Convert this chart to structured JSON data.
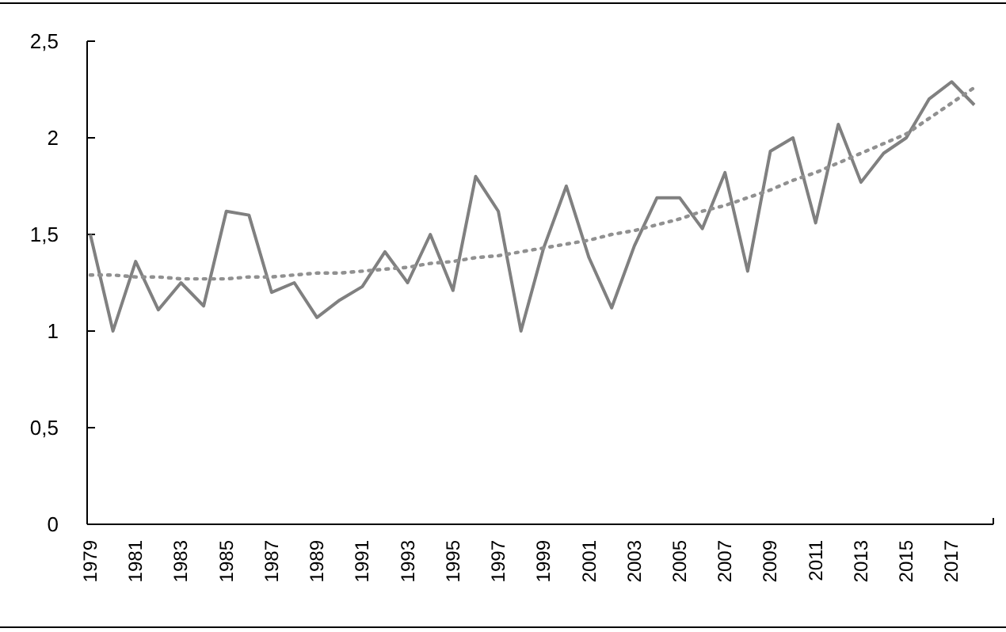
{
  "chart_data": {
    "type": "line",
    "categories": [
      "1979",
      null,
      "1981",
      null,
      "1983",
      null,
      "1985",
      null,
      "1987",
      null,
      "1989",
      null,
      "1991",
      null,
      "1993",
      null,
      "1995",
      null,
      "1997",
      null,
      "1999",
      null,
      "2001",
      null,
      "2003",
      null,
      "2005",
      null,
      "2007",
      null,
      "2009",
      null,
      "2011",
      null,
      "2013",
      null,
      "2015",
      null,
      "2017",
      null
    ],
    "series": [
      {
        "color": "#808080",
        "line_style": "solid",
        "values": [
          1.5,
          1.0,
          1.36,
          1.11,
          1.25,
          1.13,
          1.62,
          1.6,
          1.2,
          1.25,
          1.07,
          1.16,
          1.23,
          1.41,
          1.25,
          1.5,
          1.21,
          1.8,
          1.62,
          1.0,
          1.43,
          1.75,
          1.38,
          1.12,
          1.44,
          1.69,
          1.69,
          1.53,
          1.82,
          1.31,
          1.93,
          2.0,
          1.56,
          2.07,
          1.77,
          1.92,
          2.0,
          2.2,
          2.29,
          2.17
        ]
      },
      {
        "color": "#909090",
        "line_style": "dotted",
        "values": [
          1.29,
          1.29,
          1.28,
          1.28,
          1.27,
          1.27,
          1.27,
          1.28,
          1.28,
          1.29,
          1.3,
          1.3,
          1.31,
          1.32,
          1.33,
          1.35,
          1.36,
          1.38,
          1.39,
          1.41,
          1.43,
          1.45,
          1.47,
          1.5,
          1.52,
          1.55,
          1.58,
          1.62,
          1.65,
          1.69,
          1.73,
          1.78,
          1.82,
          1.87,
          1.92,
          1.97,
          2.02,
          2.1,
          2.18,
          2.26
        ]
      }
    ],
    "ylim": [
      0,
      2.5
    ],
    "yticks": [
      0,
      {
        "value": 0.5,
        "label": "0,5"
      },
      1,
      {
        "value": 1.5,
        "label": "1,5"
      },
      2,
      {
        "value": 2.5,
        "label": "2,5"
      }
    ],
    "grid": false,
    "marker": "none"
  }
}
